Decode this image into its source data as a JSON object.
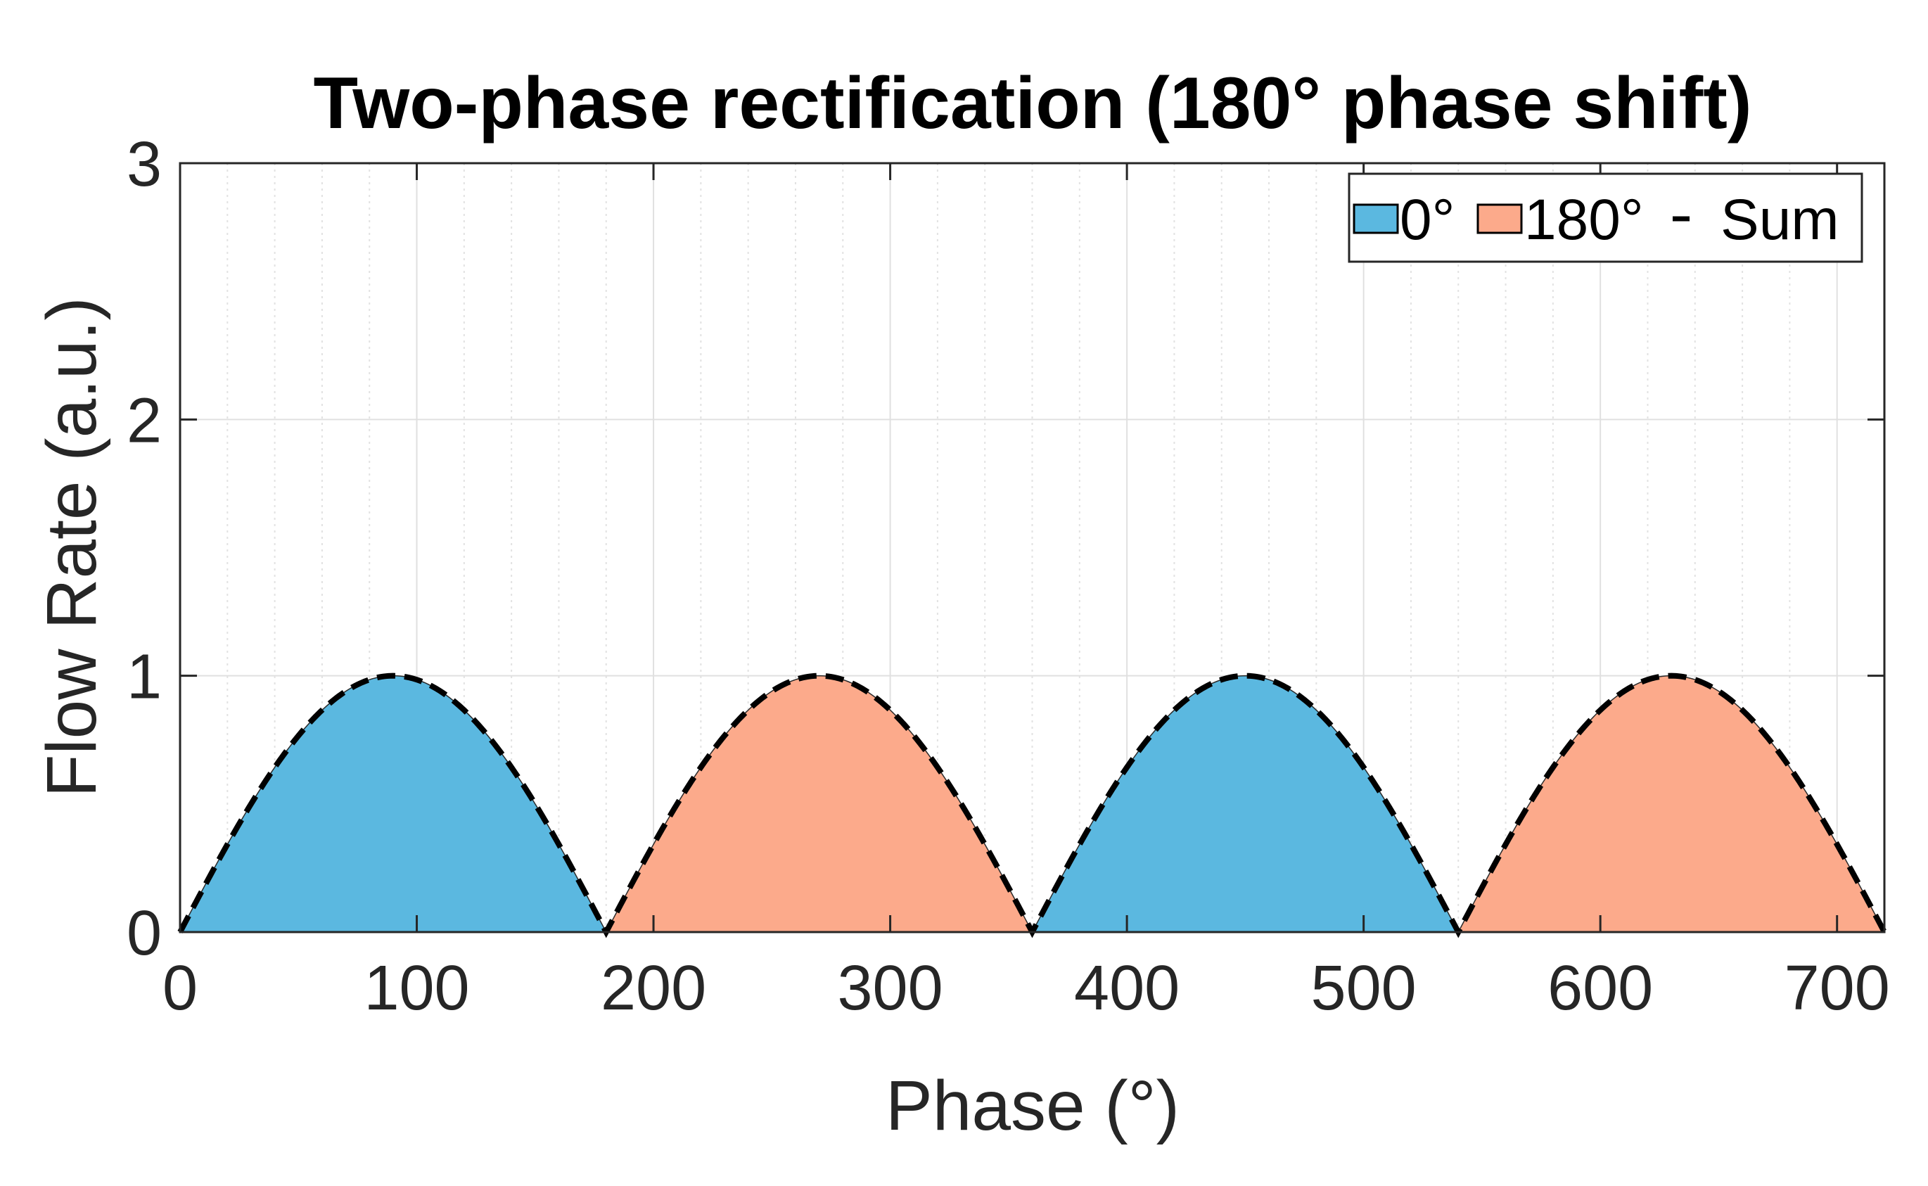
{
  "chart_data": {
    "type": "area",
    "title": "Two-phase rectification (180° phase shift)",
    "xlabel": "Phase (°)",
    "ylabel": "Flow Rate (a.u.)",
    "xlim": [
      0,
      720
    ],
    "ylim": [
      0,
      3
    ],
    "xticks": [
      0,
      100,
      200,
      300,
      400,
      500,
      600,
      700
    ],
    "yticks": [
      0,
      1,
      2,
      3
    ],
    "x_minor_step": 20,
    "grid": true,
    "legend_position": "top-right",
    "series": [
      {
        "name": "0°",
        "style": "filled-area",
        "color": "#5BB8E0",
        "formula": "max(0, sin(phase))",
        "x": [
          0,
          30,
          60,
          90,
          120,
          150,
          180,
          210,
          240,
          270,
          300,
          330,
          360,
          390,
          420,
          450,
          480,
          510,
          540,
          570,
          600,
          630,
          660,
          690,
          720
        ],
        "values": [
          0,
          0.5,
          0.866,
          1,
          0.866,
          0.5,
          0,
          0,
          0,
          0,
          0,
          0,
          0,
          0.5,
          0.866,
          1,
          0.866,
          0.5,
          0,
          0,
          0,
          0,
          0,
          0,
          0
        ]
      },
      {
        "name": "180°",
        "style": "filled-area",
        "color": "#FCAA8B",
        "formula": "max(0, sin(phase - 180))",
        "x": [
          0,
          30,
          60,
          90,
          120,
          150,
          180,
          210,
          240,
          270,
          300,
          330,
          360,
          390,
          420,
          450,
          480,
          510,
          540,
          570,
          600,
          630,
          660,
          690,
          720
        ],
        "values": [
          0,
          0,
          0,
          0,
          0,
          0,
          0,
          0.5,
          0.866,
          1,
          0.866,
          0.5,
          0,
          0,
          0,
          0,
          0,
          0,
          0,
          0.5,
          0.866,
          1,
          0.866,
          0.5,
          0
        ]
      },
      {
        "name": "Sum",
        "style": "dashed-line",
        "color": "#000000",
        "formula": "|sin(phase)|",
        "x": [
          0,
          30,
          60,
          90,
          120,
          150,
          180,
          210,
          240,
          270,
          300,
          330,
          360,
          390,
          420,
          450,
          480,
          510,
          540,
          570,
          600,
          630,
          660,
          690,
          720
        ],
        "values": [
          0,
          0.5,
          0.866,
          1,
          0.866,
          0.5,
          0,
          0.5,
          0.866,
          1,
          0.866,
          0.5,
          0,
          0.5,
          0.866,
          1,
          0.866,
          0.5,
          0,
          0.5,
          0.866,
          1,
          0.866,
          0.5,
          0
        ]
      }
    ],
    "legend": {
      "entries": [
        "0°",
        "180°",
        "Sum"
      ]
    }
  }
}
